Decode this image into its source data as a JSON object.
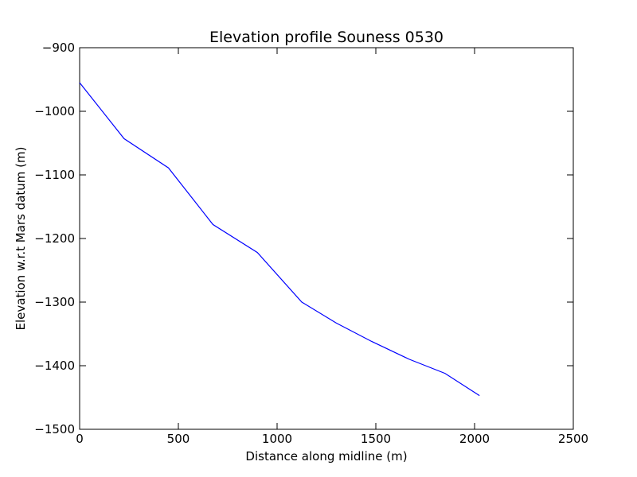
{
  "chart_data": {
    "type": "line",
    "title": "Elevation profile Souness 0530",
    "xlabel": "Distance along midline (m)",
    "ylabel": "Elevation w.r.t Mars datum (m)",
    "xlim": [
      0,
      2500
    ],
    "ylim": [
      -1500,
      -900
    ],
    "xticks": [
      0,
      500,
      1000,
      1500,
      2000,
      2500
    ],
    "yticks": [
      -1500,
      -1400,
      -1300,
      -1200,
      -1100,
      -1000,
      -900
    ],
    "xtick_labels": [
      "0",
      "500",
      "1000",
      "1500",
      "2000",
      "2500"
    ],
    "ytick_labels": [
      "−1500",
      "−1400",
      "−1300",
      "−1200",
      "−1100",
      "−1000",
      "−900"
    ],
    "grid": false,
    "series": [
      {
        "color": "#0000ff",
        "x": [
          0,
          225,
          450,
          675,
          900,
          1125,
          1300,
          1480,
          1670,
          1850,
          2025
        ],
        "y": [
          -955,
          -1043,
          -1089,
          -1178,
          -1222,
          -1300,
          -1333,
          -1362,
          -1390,
          -1412,
          -1447
        ]
      }
    ]
  }
}
